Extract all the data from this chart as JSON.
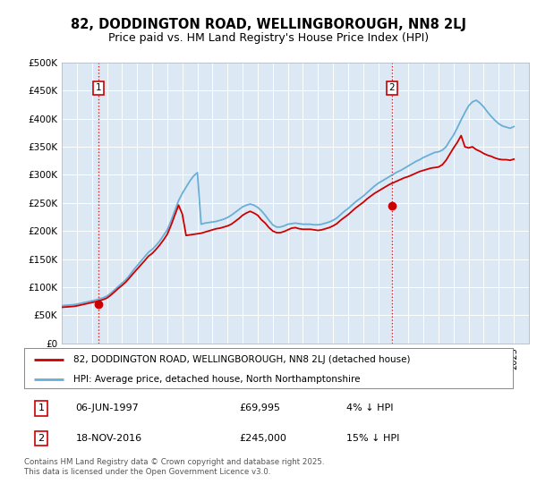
{
  "title_line1": "82, DODDINGTON ROAD, WELLINGBOROUGH, NN8 2LJ",
  "title_line2": "Price paid vs. HM Land Registry's House Price Index (HPI)",
  "plot_background": "#dce9f5",
  "ylim": [
    0,
    500000
  ],
  "yticks": [
    0,
    50000,
    100000,
    150000,
    200000,
    250000,
    300000,
    350000,
    400000,
    450000,
    500000
  ],
  "ytick_labels": [
    "£0",
    "£50K",
    "£100K",
    "£150K",
    "£200K",
    "£250K",
    "£300K",
    "£350K",
    "£400K",
    "£450K",
    "£500K"
  ],
  "hpi_color": "#6aaed6",
  "price_color": "#cc0000",
  "marker_color": "#cc0000",
  "sale1_date": 1997.43,
  "sale1_price": 69995,
  "sale2_date": 2016.89,
  "sale2_price": 245000,
  "legend_line1": "82, DODDINGTON ROAD, WELLINGBOROUGH, NN8 2LJ (detached house)",
  "legend_line2": "HPI: Average price, detached house, North Northamptonshire",
  "table_row1_num": "1",
  "table_row1_date": "06-JUN-1997",
  "table_row1_price": "£69,995",
  "table_row1_hpi": "4% ↓ HPI",
  "table_row2_num": "2",
  "table_row2_date": "18-NOV-2016",
  "table_row2_price": "£245,000",
  "table_row2_hpi": "15% ↓ HPI",
  "footer": "Contains HM Land Registry data © Crown copyright and database right 2025.\nThis data is licensed under the Open Government Licence v3.0.",
  "xmin": 1995,
  "xmax": 2026,
  "hpi_data_x": [
    1995.0,
    1995.25,
    1995.5,
    1995.75,
    1996.0,
    1996.25,
    1996.5,
    1996.75,
    1997.0,
    1997.25,
    1997.5,
    1997.75,
    1998.0,
    1998.25,
    1998.5,
    1998.75,
    1999.0,
    1999.25,
    1999.5,
    1999.75,
    2000.0,
    2000.25,
    2000.5,
    2000.75,
    2001.0,
    2001.25,
    2001.5,
    2001.75,
    2002.0,
    2002.25,
    2002.5,
    2002.75,
    2003.0,
    2003.25,
    2003.5,
    2003.75,
    2004.0,
    2004.25,
    2004.5,
    2004.75,
    2005.0,
    2005.25,
    2005.5,
    2005.75,
    2006.0,
    2006.25,
    2006.5,
    2006.75,
    2007.0,
    2007.25,
    2007.5,
    2007.75,
    2008.0,
    2008.25,
    2008.5,
    2008.75,
    2009.0,
    2009.25,
    2009.5,
    2009.75,
    2010.0,
    2010.25,
    2010.5,
    2010.75,
    2011.0,
    2011.25,
    2011.5,
    2011.75,
    2012.0,
    2012.25,
    2012.5,
    2012.75,
    2013.0,
    2013.25,
    2013.5,
    2013.75,
    2014.0,
    2014.25,
    2014.5,
    2014.75,
    2015.0,
    2015.25,
    2015.5,
    2015.75,
    2016.0,
    2016.25,
    2016.5,
    2016.75,
    2017.0,
    2017.25,
    2017.5,
    2017.75,
    2018.0,
    2018.25,
    2018.5,
    2018.75,
    2019.0,
    2019.25,
    2019.5,
    2019.75,
    2020.0,
    2020.25,
    2020.5,
    2020.75,
    2021.0,
    2021.25,
    2021.5,
    2021.75,
    2022.0,
    2022.25,
    2022.5,
    2022.75,
    2023.0,
    2023.25,
    2023.5,
    2023.75,
    2024.0,
    2024.25,
    2024.5,
    2024.75,
    2025.0
  ],
  "hpi_data_y": [
    67000,
    67500,
    68000,
    68500,
    69500,
    71000,
    72500,
    74000,
    75500,
    77000,
    79000,
    81000,
    84000,
    89000,
    95000,
    101000,
    107000,
    113000,
    121000,
    130000,
    138000,
    146000,
    154000,
    162000,
    167000,
    174000,
    182000,
    192000,
    202000,
    218000,
    236000,
    254000,
    267000,
    278000,
    289000,
    298000,
    304000,
    212000,
    214000,
    215000,
    216000,
    217000,
    219000,
    221000,
    224000,
    228000,
    233000,
    238000,
    243000,
    246000,
    248000,
    246000,
    242000,
    236000,
    228000,
    219000,
    211000,
    207000,
    207000,
    209000,
    212000,
    213000,
    214000,
    213000,
    212000,
    212000,
    212000,
    211000,
    211000,
    212000,
    214000,
    216000,
    219000,
    223000,
    229000,
    235000,
    240000,
    246000,
    252000,
    257000,
    262000,
    268000,
    274000,
    280000,
    285000,
    289000,
    293000,
    297000,
    301000,
    305000,
    308000,
    312000,
    316000,
    320000,
    324000,
    327000,
    331000,
    334000,
    337000,
    340000,
    341000,
    344000,
    350000,
    361000,
    371000,
    384000,
    398000,
    411000,
    423000,
    430000,
    433000,
    428000,
    421000,
    412000,
    404000,
    397000,
    391000,
    387000,
    385000,
    383000,
    386000
  ],
  "price_data_x": [
    1995.0,
    1995.25,
    1995.5,
    1995.75,
    1996.0,
    1996.25,
    1996.5,
    1996.75,
    1997.0,
    1997.25,
    1997.5,
    1997.75,
    1998.0,
    1998.25,
    1998.5,
    1998.75,
    1999.0,
    1999.25,
    1999.5,
    1999.75,
    2000.0,
    2000.25,
    2000.5,
    2000.75,
    2001.0,
    2001.25,
    2001.5,
    2001.75,
    2002.0,
    2002.25,
    2002.5,
    2002.75,
    2003.0,
    2003.25,
    2003.5,
    2003.75,
    2004.0,
    2004.25,
    2004.5,
    2004.75,
    2005.0,
    2005.25,
    2005.5,
    2005.75,
    2006.0,
    2006.25,
    2006.5,
    2006.75,
    2007.0,
    2007.25,
    2007.5,
    2007.75,
    2008.0,
    2008.25,
    2008.5,
    2008.75,
    2009.0,
    2009.25,
    2009.5,
    2009.75,
    2010.0,
    2010.25,
    2010.5,
    2010.75,
    2011.0,
    2011.25,
    2011.5,
    2011.75,
    2012.0,
    2012.25,
    2012.5,
    2012.75,
    2013.0,
    2013.25,
    2013.5,
    2013.75,
    2014.0,
    2014.25,
    2014.5,
    2014.75,
    2015.0,
    2015.25,
    2015.5,
    2015.75,
    2016.0,
    2016.25,
    2016.5,
    2016.75,
    2017.0,
    2017.25,
    2017.5,
    2017.75,
    2018.0,
    2018.25,
    2018.5,
    2018.75,
    2019.0,
    2019.25,
    2019.5,
    2019.75,
    2020.0,
    2020.25,
    2020.5,
    2020.75,
    2021.0,
    2021.25,
    2021.5,
    2021.75,
    2022.0,
    2022.25,
    2022.5,
    2022.75,
    2023.0,
    2023.25,
    2023.5,
    2023.75,
    2024.0,
    2024.25,
    2024.5,
    2024.75,
    2025.0
  ],
  "price_data_y": [
    64000,
    64500,
    65000,
    65500,
    66500,
    68000,
    69500,
    71000,
    72500,
    74000,
    75800,
    77800,
    80500,
    85500,
    91500,
    97500,
    103000,
    109000,
    116500,
    124500,
    132000,
    139500,
    147000,
    155000,
    160000,
    167000,
    175000,
    184000,
    194000,
    210000,
    228000,
    246000,
    230000,
    192000,
    193000,
    194000,
    195000,
    196000,
    198000,
    200000,
    202000,
    204000,
    205000,
    207000,
    209000,
    212000,
    217000,
    222000,
    228000,
    232000,
    235000,
    232000,
    228000,
    220000,
    214000,
    206000,
    200000,
    197000,
    197000,
    199000,
    202000,
    205000,
    206000,
    204000,
    203000,
    203000,
    203000,
    202000,
    201000,
    202000,
    204000,
    206000,
    209000,
    213000,
    219000,
    224000,
    229000,
    235000,
    241000,
    246000,
    251000,
    257000,
    262000,
    267000,
    271000,
    275000,
    279000,
    283000,
    286000,
    289000,
    292000,
    295000,
    297000,
    300000,
    303000,
    306000,
    308000,
    310000,
    312000,
    313000,
    314000,
    318000,
    326000,
    337000,
    348000,
    358000,
    370000,
    350000,
    348000,
    350000,
    345000,
    342000,
    338000,
    335000,
    333000,
    330000,
    328000,
    327000,
    327000,
    326000,
    328000
  ]
}
